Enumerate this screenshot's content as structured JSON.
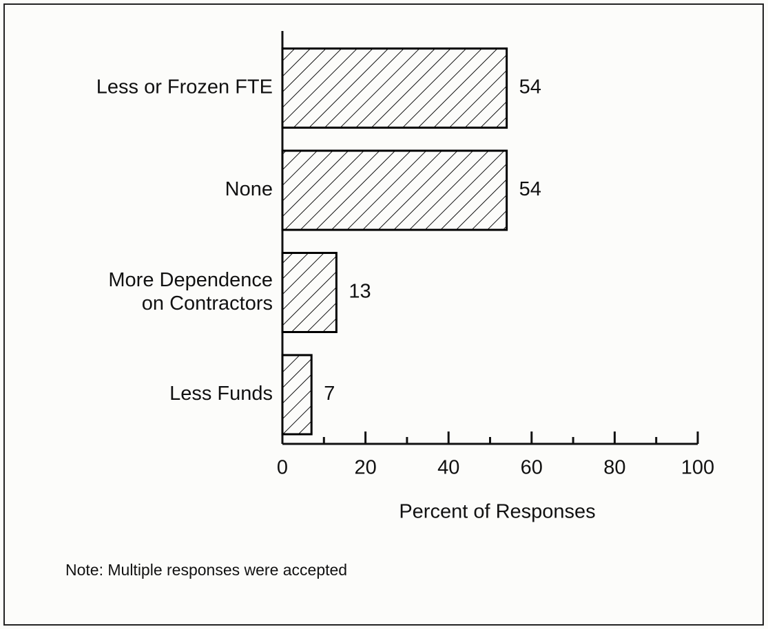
{
  "chart_data": {
    "type": "bar",
    "orientation": "horizontal",
    "categories": [
      "Less or Frozen FTE",
      "None",
      "More Dependence\non Contractors",
      "Less Funds"
    ],
    "values": [
      54,
      54,
      13,
      7
    ],
    "color": "#000000",
    "xlabel": "Percent of Responses",
    "xlim": [
      0,
      100
    ],
    "xticks": [
      0,
      20,
      40,
      60,
      80,
      100
    ],
    "xminorticks": [
      10,
      30,
      50,
      70,
      90
    ],
    "note": "Note:  Multiple responses were accepted"
  }
}
